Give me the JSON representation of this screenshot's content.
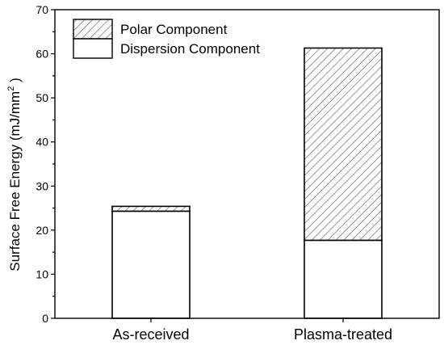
{
  "chart_data": {
    "type": "bar",
    "stacked": true,
    "categories": [
      "As-received",
      "Plasma-treated"
    ],
    "series": [
      {
        "name": "Dispersion Component",
        "values": [
          24.3,
          17.7
        ],
        "fill": "#ffffff",
        "pattern": "none"
      },
      {
        "name": "Polar Component",
        "values": [
          1.1,
          43.6
        ],
        "fill": "#ffffff",
        "pattern": "diagonal-hatch"
      }
    ],
    "totals": [
      25.4,
      61.3
    ],
    "ylabel_main": "Surface Free Energy (mJ/mm",
    "ylabel_sup": "2",
    "ylabel_tail": " )",
    "ylim": [
      0,
      70
    ],
    "yticks": [
      0,
      10,
      20,
      30,
      40,
      50,
      60,
      70
    ],
    "grid": false,
    "legend_position": "top-left",
    "legend_order": [
      "Polar Component",
      "Dispersion Component"
    ],
    "colors": {
      "axis": "#000000",
      "hatch": "#555555",
      "bar_stroke": "#000000"
    }
  }
}
